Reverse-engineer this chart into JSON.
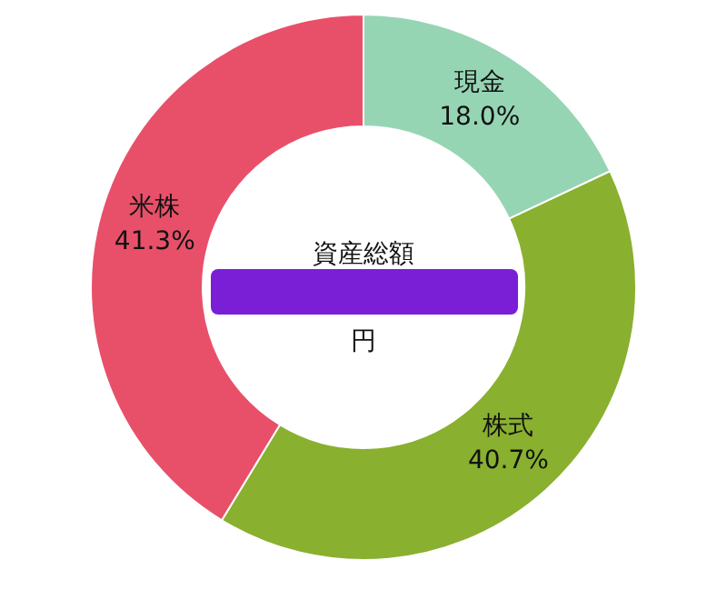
{
  "chart_data": {
    "type": "donut",
    "categories": [
      "現金",
      "株式",
      "米株"
    ],
    "values": [
      18.0,
      40.7,
      41.3
    ],
    "colors": [
      "#96d5b4",
      "#89b02f",
      "#e8506a"
    ],
    "value_labels": [
      "18.0%",
      "40.7%",
      "41.3%"
    ],
    "annotations": [
      "資産総額",
      "円"
    ]
  }
}
